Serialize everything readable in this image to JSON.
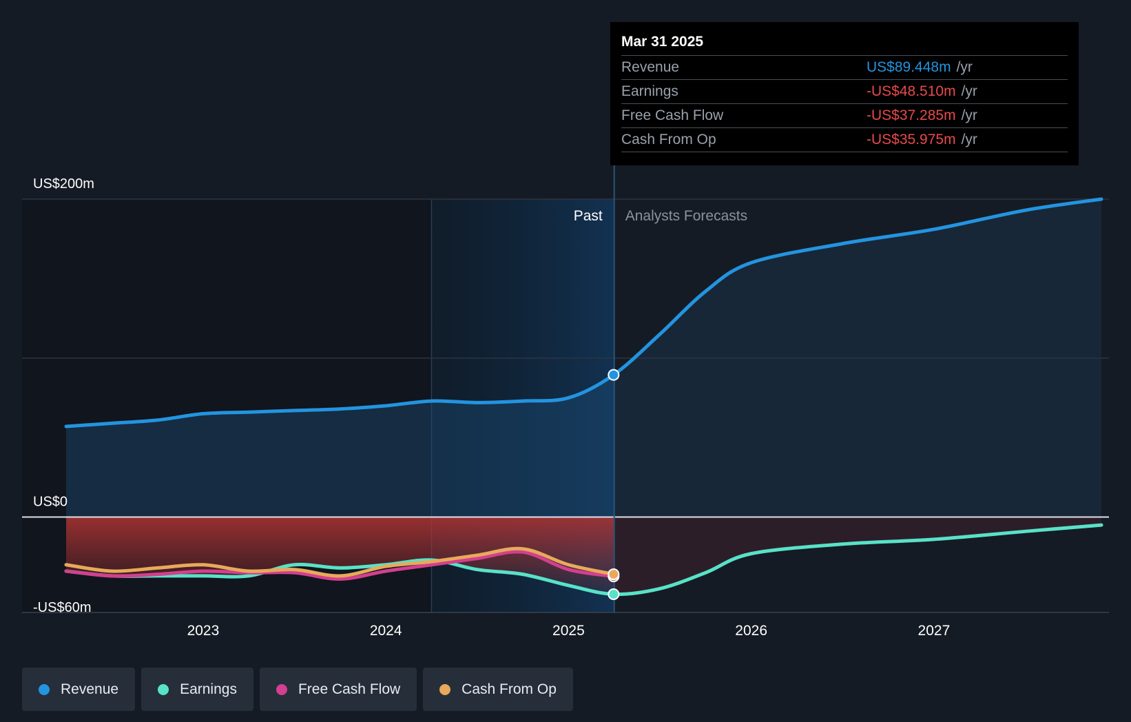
{
  "chart_data": {
    "type": "line",
    "y_labels": {
      "top": "US$200m",
      "zero": "US$0",
      "bottom": "-US$60m"
    },
    "ylim": [
      -60,
      200
    ],
    "x_ticks": [
      "2023",
      "2024",
      "2025",
      "2026",
      "2027"
    ],
    "regions": {
      "past_label": "Past",
      "forecast_label": "Analysts Forecasts"
    },
    "series": [
      {
        "name": "Revenue",
        "color": "#2394e0",
        "x": [
          "2022-04",
          "2022-07",
          "2022-10",
          "2023-01",
          "2023-04",
          "2023-07",
          "2023-10",
          "2024-01",
          "2024-04",
          "2024-07",
          "2024-10",
          "2025-01",
          "2025-03",
          "2025-07",
          "2025-10",
          "2026-01",
          "2026-07",
          "2027-01",
          "2027-07",
          "2027-12"
        ],
        "values": [
          57,
          59,
          61,
          65,
          66,
          67,
          68,
          70,
          73,
          72,
          73,
          75,
          89.448,
          115,
          142,
          160,
          172,
          181,
          193,
          200
        ]
      },
      {
        "name": "Earnings",
        "color": "#58e2c8",
        "x": [
          "2022-04",
          "2022-07",
          "2022-10",
          "2023-01",
          "2023-04",
          "2023-07",
          "2023-10",
          "2024-01",
          "2024-04",
          "2024-07",
          "2024-10",
          "2025-01",
          "2025-03",
          "2025-07",
          "2025-10",
          "2026-01",
          "2026-07",
          "2027-01",
          "2027-07",
          "2027-12"
        ],
        "values": [
          -34,
          -37,
          -37,
          -37,
          -37,
          -30,
          -32,
          -30,
          -27,
          -33,
          -36,
          -43,
          -48.51,
          -45,
          -35,
          -23,
          -17,
          -14,
          -9,
          -5
        ]
      },
      {
        "name": "Free Cash Flow",
        "color": "#d2408f",
        "x": [
          "2022-04",
          "2022-07",
          "2022-10",
          "2023-01",
          "2023-04",
          "2023-07",
          "2023-10",
          "2024-01",
          "2024-04",
          "2024-07",
          "2024-10",
          "2025-01",
          "2025-03"
        ],
        "values": [
          -34,
          -37,
          -36,
          -34,
          -35,
          -35,
          -39,
          -34,
          -30,
          -26,
          -22,
          -33,
          -37.285
        ]
      },
      {
        "name": "Cash From Op",
        "color": "#e8a95b",
        "x": [
          "2022-04",
          "2022-07",
          "2022-10",
          "2023-01",
          "2023-04",
          "2023-07",
          "2023-10",
          "2024-01",
          "2024-04",
          "2024-07",
          "2024-10",
          "2025-01",
          "2025-03"
        ],
        "values": [
          -30,
          -34,
          -32,
          -30,
          -34,
          -33,
          -37,
          -31,
          -28,
          -24,
          -20,
          -30,
          -35.975
        ]
      }
    ]
  },
  "tooltip": {
    "date": "Mar 31 2025",
    "rows": [
      {
        "label": "Revenue",
        "value": "US$89.448m",
        "unit": "/yr",
        "color": "#2394e0"
      },
      {
        "label": "Earnings",
        "value": "-US$48.510m",
        "unit": "/yr",
        "color": "#e84a4a"
      },
      {
        "label": "Free Cash Flow",
        "value": "-US$37.285m",
        "unit": "/yr",
        "color": "#e84a4a"
      },
      {
        "label": "Cash From Op",
        "value": "-US$35.975m",
        "unit": "/yr",
        "color": "#e84a4a"
      }
    ]
  },
  "legend": [
    {
      "label": "Revenue",
      "color": "#2394e0"
    },
    {
      "label": "Earnings",
      "color": "#58e2c8"
    },
    {
      "label": "Free Cash Flow",
      "color": "#d2408f"
    },
    {
      "label": "Cash From Op",
      "color": "#e8a95b"
    }
  ]
}
